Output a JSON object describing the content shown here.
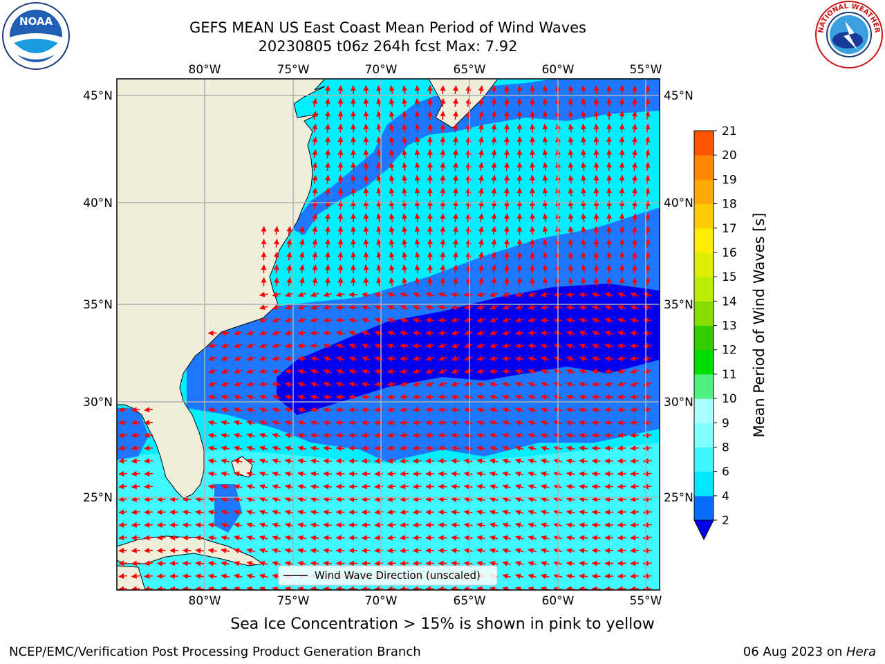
{
  "title_line1": "GEFS MEAN US East Coast Mean Period of Wind Waves",
  "title_line2": "20230805 t06z 264h fcst   Max: 7.92",
  "caption": "Sea Ice Concentration > 15% is shown in pink to yellow",
  "footer_left": "NCEP/EMC/Verification Post Processing Product Generation Branch",
  "footer_right_date": "06 Aug 2023 on ",
  "footer_right_host": "Hera",
  "legend_label": "Wind Wave Direction (unscaled)",
  "colorbar": {
    "label": "Mean Period of Wind Waves [s]",
    "ticks": [
      "2",
      "4",
      "6",
      "8",
      "9",
      "10",
      "11",
      "12",
      "13",
      "14",
      "15",
      "16",
      "17",
      "18",
      "19",
      "20",
      "21"
    ],
    "colors": [
      "#0a6cff",
      "#00e8ff",
      "#3cf7ff",
      "#80ffff",
      "#aaffff",
      "#50f080",
      "#00dd00",
      "#33cc00",
      "#88dd00",
      "#bbee00",
      "#ddee00",
      "#ffee00",
      "#ffcc00",
      "#ffaa00",
      "#ff8800",
      "#ff5500",
      "#ff2200",
      "#ff0000"
    ],
    "under_color": "#0000ee"
  },
  "lon_labels": [
    "80°W",
    "75°W",
    "70°W",
    "65°W",
    "60°W",
    "55°W"
  ],
  "lat_labels": [
    "45°N",
    "40°N",
    "35°N",
    "30°N",
    "25°N"
  ],
  "logos": {
    "left": "NOAA",
    "right": "NATIONAL WEATHER SERVICE"
  },
  "map_colors": {
    "land": "#efeedb",
    "level_2_4": "#1e78ff",
    "level_4_6": "#00efff",
    "level_6_8": "#40f8ff",
    "below_2": "#0000ee",
    "arrow": "#ff0000",
    "grid": "#b0b0b0"
  }
}
